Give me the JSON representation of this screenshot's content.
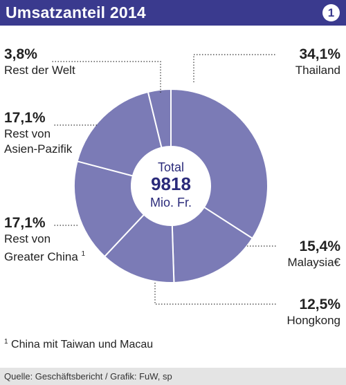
{
  "header": {
    "title": "Umsatzanteil 2014",
    "badge": "1"
  },
  "chart_data": {
    "type": "pie",
    "title": "Umsatzanteil 2014",
    "center": {
      "label": "Total",
      "value": "9818",
      "unit": "Mio. Fr."
    },
    "slices": [
      {
        "name": "Thailand",
        "value": 34.1,
        "label": "34,1%"
      },
      {
        "name": "Malaysia€",
        "value": 15.4,
        "label": "15,4%"
      },
      {
        "name": "Hongkong",
        "value": 12.5,
        "label": "12,5%"
      },
      {
        "name": "Rest von Greater China",
        "value": 17.1,
        "label": "17,1%"
      },
      {
        "name": "Rest von Asien-Pazifik",
        "value": 17.1,
        "label": "17,1%"
      },
      {
        "name": "Rest der Welt",
        "value": 3.8,
        "label": "3,8%"
      }
    ],
    "label_lines": {
      "greater_china": [
        "Rest von",
        "Greater China"
      ],
      "asien_pazifik": [
        "Rest von",
        "Asien-Pazifik"
      ]
    },
    "color": "#7b7bb6",
    "stroke": "#ffffff"
  },
  "footnote": {
    "marker": "1",
    "text": "China mit Taiwan und Macau"
  },
  "source": "Quelle: Geschäftsbericht / Grafik: FuW, sp"
}
